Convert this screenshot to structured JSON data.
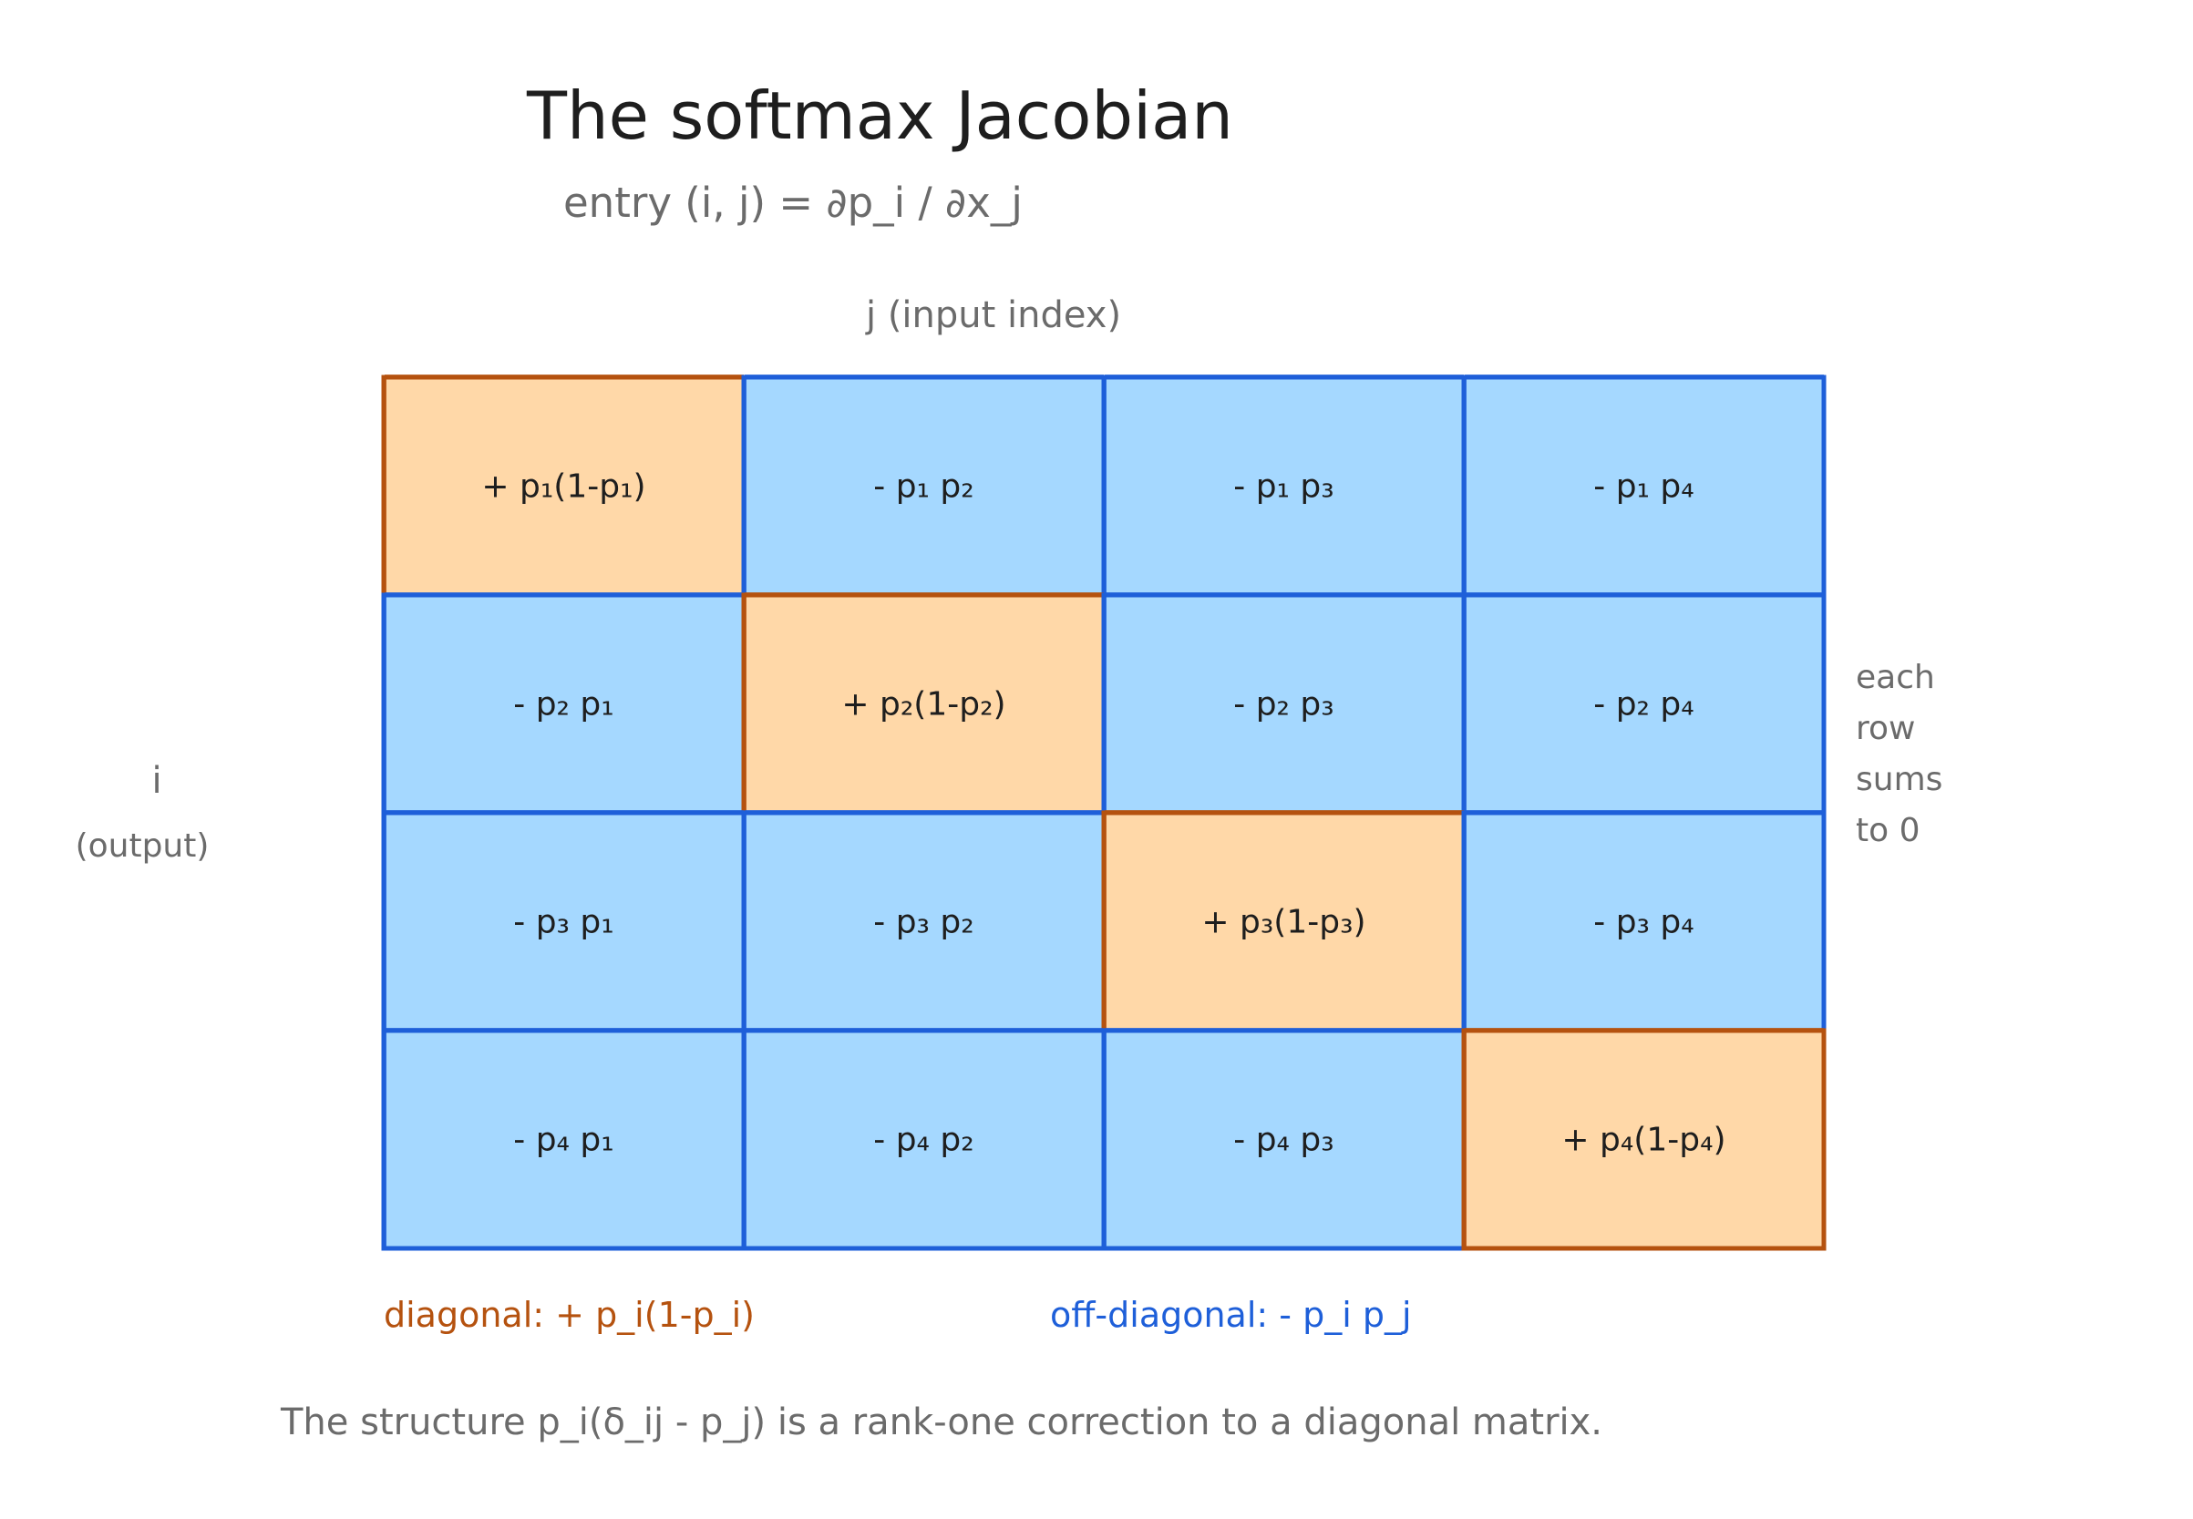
{
  "title": "The softmax Jacobian",
  "subtitle": "entry (i, j) = ∂p_i / ∂x_j",
  "column_axis_label": "j (input index)",
  "row_axis_label": {
    "line1": "i",
    "line2": "(output)"
  },
  "side_note": [
    "each",
    "row",
    "sums",
    "to 0"
  ],
  "matrix": {
    "rows": [
      [
        "+ p₁(1-p₁)",
        "- p₁ p₂",
        "- p₁ p₃",
        "- p₁ p₄"
      ],
      [
        "- p₂ p₁",
        "+ p₂(1-p₂)",
        "- p₂ p₃",
        "- p₂ p₄"
      ],
      [
        "- p₃ p₁",
        "- p₃ p₂",
        "+ p₃(1-p₃)",
        "- p₃ p₄"
      ],
      [
        "- p₄ p₁",
        "- p₄ p₂",
        "- p₄ p₃",
        "+ p₄(1-p₄)"
      ]
    ]
  },
  "colors": {
    "diagonal_fill": "#ffd8a8",
    "diagonal_stroke": "#b5520f",
    "offdiagonal_fill": "#a5d8ff",
    "offdiagonal_stroke": "#1e5fd9"
  },
  "legend": {
    "diagonal": "diagonal: + p_i(1-p_i)",
    "off_diagonal": "off-diagonal: - p_i p_j"
  },
  "footer": "The structure p_i(δ_ij - p_j) is a rank-one correction to a diagonal matrix."
}
